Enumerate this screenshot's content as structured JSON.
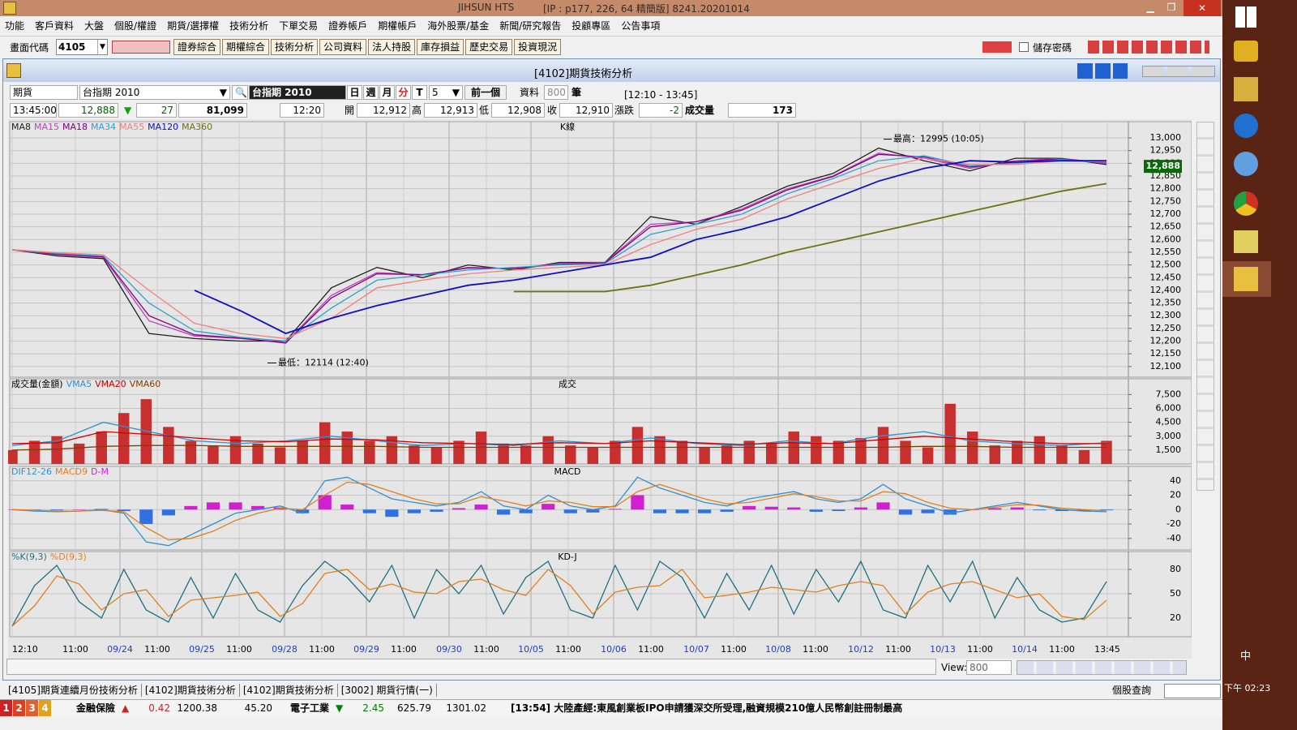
{
  "window": {
    "title": "JIHSUN HTS",
    "connection": "[IP : p177, 226, 64 精簡版] 8241.20201014"
  },
  "menu": [
    "功能",
    "客戶資料",
    "大盤",
    "個股/權證",
    "期貨/選擇權",
    "技術分析",
    "下單交易",
    "證券帳戶",
    "期權帳戶",
    "海外股票/基金",
    "新聞/研究報告",
    "投顧專區",
    "公告事項"
  ],
  "toolbar": {
    "code_label": "畫面代碼",
    "code": "4105",
    "buttons": [
      "證券綜合",
      "期權綜合",
      "技術分析",
      "公司資料",
      "法人持股",
      "庫存損益",
      "歷史交易",
      "投資現況"
    ],
    "save_password": "儲存密碼"
  },
  "panel": {
    "title": "[4102]期貨技術分析",
    "market": "期貨",
    "contract": "台指期 2010",
    "contract_label": "台指期 2010",
    "periods": [
      "日",
      "週",
      "月",
      "分",
      "T"
    ],
    "interval": "5",
    "prev": "前一個",
    "data_label": "資料",
    "data_count": "800",
    "unit": "筆",
    "range": "[12:10 - 13:45]"
  },
  "quote": {
    "time": "13:45:00",
    "last": "12,888",
    "arrow": "▼",
    "change": "27",
    "volume_total": "81,099",
    "bar_time": "12:20",
    "open_label": "開",
    "open": "12,912",
    "high_label": "高",
    "high": "12,913",
    "low_label": "低",
    "low": "12,908",
    "close_label": "收",
    "close": "12,910",
    "diff_label": "漲跌",
    "diff": "-2",
    "vol_label": "成交量",
    "vol": "173"
  },
  "chart_data": [
    {
      "type": "line",
      "title": "K線",
      "grid": true,
      "ylim": [
        12058,
        13064
      ],
      "yticks": [
        {
          "value": 12100,
          "label": "12,100"
        },
        {
          "value": 12150,
          "label": "12,150"
        },
        {
          "value": 12200,
          "label": "12,200"
        },
        {
          "value": 12250,
          "label": "12,250"
        },
        {
          "value": 12300,
          "label": "12,300"
        },
        {
          "value": 12350,
          "label": "12,350"
        },
        {
          "value": 12400,
          "label": "12,400"
        },
        {
          "value": 12450,
          "label": "12,450"
        },
        {
          "value": 12500,
          "label": "12,500"
        },
        {
          "value": 12550,
          "label": "12,550"
        },
        {
          "value": 12600,
          "label": "12,600"
        },
        {
          "value": 12650,
          "label": "12,650"
        },
        {
          "value": 12700,
          "label": "12,700"
        },
        {
          "value": 12750,
          "label": "12,750"
        },
        {
          "value": 12800,
          "label": "12,800"
        },
        {
          "value": 12850,
          "label": "12,850"
        },
        {
          "value": 12900,
          "label": "12,900"
        },
        {
          "value": 12950,
          "label": "12,950"
        },
        {
          "value": 13000,
          "label": "13,000"
        }
      ],
      "series": [
        {
          "name": "MA8",
          "color": "#202020",
          "values": [
            12560,
            12535,
            12525,
            12230,
            12210,
            12200,
            12200,
            12410,
            12490,
            12450,
            12500,
            12480,
            12510,
            12510,
            12690,
            12660,
            12730,
            12810,
            12860,
            12960,
            12910,
            12870,
            12920,
            12920,
            12895
          ]
        },
        {
          "name": "MA15",
          "color": "#c040c0",
          "values": [
            12560,
            12540,
            12530,
            12280,
            12220,
            12210,
            12195,
            12380,
            12470,
            12460,
            12490,
            12485,
            12505,
            12510,
            12660,
            12670,
            12720,
            12800,
            12850,
            12940,
            12920,
            12880,
            12910,
            12920,
            12900
          ]
        },
        {
          "name": "MA18",
          "color": "#800080",
          "values": [
            12560,
            12542,
            12532,
            12300,
            12225,
            12212,
            12192,
            12370,
            12465,
            12462,
            12488,
            12486,
            12502,
            12508,
            12650,
            12670,
            12715,
            12795,
            12848,
            12935,
            12925,
            12885,
            12905,
            12918,
            12902
          ]
        },
        {
          "name": "MA34",
          "color": "#30a0d0",
          "values": [
            12560,
            12545,
            12535,
            12350,
            12240,
            12215,
            12200,
            12330,
            12440,
            12460,
            12480,
            12490,
            12500,
            12505,
            12620,
            12660,
            12700,
            12780,
            12840,
            12910,
            12930,
            12890,
            12900,
            12915,
            12905
          ]
        },
        {
          "name": "MA55",
          "color": "#f08080",
          "values": [
            12560,
            12548,
            12540,
            12400,
            12270,
            12230,
            12210,
            12290,
            12410,
            12440,
            12465,
            12480,
            12490,
            12500,
            12580,
            12640,
            12680,
            12760,
            12820,
            12880,
            12920,
            12895,
            12895,
            12910,
            12905
          ]
        },
        {
          "name": "MA120",
          "color": "#1010c0",
          "values": [
            null,
            null,
            null,
            null,
            12400,
            12320,
            12230,
            12290,
            12340,
            12380,
            12420,
            12440,
            12470,
            12500,
            12530,
            12600,
            12640,
            12690,
            12760,
            12830,
            12880,
            12910,
            12905,
            12910,
            12910
          ]
        },
        {
          "name": "MA360",
          "color": "#707010",
          "values": [
            null,
            null,
            null,
            null,
            null,
            null,
            null,
            null,
            null,
            null,
            null,
            12395,
            12395,
            12395,
            12420,
            12460,
            12500,
            12550,
            12590,
            12630,
            12670,
            12710,
            12750,
            12790,
            12820
          ]
        }
      ],
      "last_price": {
        "value": 12888,
        "label": "12,888"
      },
      "high": {
        "label": "最高：12995 (10:05)",
        "value": 12995
      },
      "low": {
        "label": "最低：12114 (12:40)",
        "value": 12114
      }
    },
    {
      "type": "bar",
      "title": "成交",
      "legend_title": "成交量(金額)",
      "color": "#c83030",
      "grid": true,
      "ylim": [
        0,
        9200
      ],
      "yticks": [
        {
          "value": 1500,
          "label": "1,500"
        },
        {
          "value": 3000,
          "label": "3,000"
        },
        {
          "value": 4500,
          "label": "4,500"
        },
        {
          "value": 6000,
          "label": "6,000"
        },
        {
          "value": 7500,
          "label": "7,500"
        }
      ],
      "values": [
        1500,
        2500,
        3000,
        2200,
        3500,
        5500,
        7000,
        4000,
        2500,
        2000,
        3000,
        2200,
        1800,
        2500,
        4500,
        3500,
        2500,
        3000,
        2000,
        1800,
        2500,
        3500,
        2200,
        2000,
        3000,
        2000,
        1800,
        2500,
        4000,
        3000,
        2500,
        1800,
        2000,
        2500,
        2200,
        3500,
        3000,
        2500,
        2800,
        4000,
        2500,
        1800,
        6500,
        3500,
        2000,
        2500,
        3000,
        2000,
        1500,
        2500
      ],
      "series": [
        {
          "name": "VMA5",
          "color": "#3090d0",
          "values": [
            2000,
            2500,
            4500,
            3500,
            2500,
            2200,
            2500,
            3000,
            2500,
            2000,
            2200,
            2000,
            2500,
            2200,
            2800,
            2200,
            2000,
            2500,
            2200,
            3000,
            3500,
            2500,
            2200,
            2000,
            2300
          ]
        },
        {
          "name": "VMA20",
          "color": "#d00000",
          "values": [
            2200,
            2300,
            3500,
            3200,
            2800,
            2500,
            2400,
            2700,
            2600,
            2300,
            2200,
            2100,
            2300,
            2200,
            2500,
            2300,
            2100,
            2300,
            2200,
            2600,
            3000,
            2700,
            2400,
            2200,
            2200
          ]
        },
        {
          "name": "VMA60",
          "color": "#804000",
          "values": [
            1500,
            1600,
            1900,
            2000,
            2000,
            1900,
            1900,
            1900,
            1900,
            1800,
            1800,
            1800,
            1800,
            1800,
            1800,
            1800,
            1800,
            1800,
            1800,
            1800,
            1900,
            1900,
            1800,
            1800,
            1800
          ]
        }
      ]
    },
    {
      "type": "line",
      "title": "MACD",
      "grid": true,
      "ylim": [
        -56,
        60
      ],
      "yticks": [
        40,
        20,
        0,
        -20,
        -40
      ],
      "series": [
        {
          "name": "DIF12-26",
          "color": "#3090d0",
          "values": [
            0,
            -2,
            -3,
            -2,
            0,
            -5,
            -45,
            -50,
            -35,
            -20,
            -5,
            0,
            5,
            -5,
            40,
            45,
            30,
            15,
            10,
            5,
            10,
            25,
            5,
            0,
            20,
            5,
            0,
            5,
            45,
            30,
            20,
            10,
            5,
            15,
            20,
            25,
            15,
            10,
            15,
            35,
            15,
            5,
            -5,
            0,
            5,
            10,
            5,
            0,
            -2,
            -3
          ]
        },
        {
          "name": "MACD9",
          "color": "#e08020",
          "values": [
            0,
            -1,
            -2,
            -2,
            -1,
            -3,
            -25,
            -42,
            -40,
            -30,
            -15,
            -5,
            2,
            0,
            20,
            38,
            35,
            25,
            15,
            8,
            8,
            18,
            12,
            5,
            12,
            10,
            4,
            4,
            25,
            35,
            25,
            15,
            8,
            10,
            16,
            22,
            18,
            12,
            12,
            25,
            22,
            10,
            2,
            0,
            3,
            7,
            6,
            2,
            0,
            -2
          ]
        }
      ],
      "histogram": {
        "name": "D-M",
        "color": "#d020d0",
        "negative_color": "#3070e0",
        "values": [
          0,
          -1,
          -1,
          0,
          1,
          -2,
          -20,
          -8,
          5,
          10,
          10,
          5,
          3,
          -5,
          20,
          7,
          -5,
          -10,
          -5,
          -3,
          2,
          7,
          -7,
          -5,
          8,
          -5,
          -4,
          1,
          20,
          -5,
          -5,
          -5,
          -3,
          5,
          4,
          3,
          -3,
          -2,
          3,
          10,
          -7,
          -5,
          -7,
          0,
          2,
          3,
          -1,
          -2,
          -2,
          -1
        ]
      }
    },
    {
      "type": "line",
      "title": "KD-J",
      "grid": true,
      "ylim": [
        -3,
        102
      ],
      "yticks": [
        80,
        50,
        20
      ],
      "series": [
        {
          "name": "%K(9,3)",
          "color": "#207080",
          "values": [
            10,
            60,
            85,
            40,
            20,
            80,
            30,
            15,
            70,
            20,
            75,
            30,
            15,
            60,
            90,
            70,
            40,
            85,
            20,
            80,
            50,
            85,
            25,
            70,
            90,
            30,
            20,
            85,
            30,
            90,
            70,
            20,
            75,
            30,
            85,
            25,
            80,
            40,
            90,
            30,
            20,
            85,
            40,
            90,
            20,
            70,
            30,
            15,
            20,
            65
          ]
        },
        {
          "name": "%D(9,3)",
          "color": "#e08020",
          "values": [
            10,
            35,
            72,
            62,
            30,
            50,
            55,
            22,
            42,
            45,
            48,
            52,
            22,
            38,
            75,
            80,
            55,
            62,
            52,
            50,
            65,
            68,
            55,
            48,
            80,
            60,
            25,
            52,
            58,
            60,
            80,
            45,
            48,
            52,
            58,
            55,
            52,
            60,
            65,
            60,
            25,
            52,
            62,
            65,
            55,
            45,
            50,
            22,
            18,
            42
          ]
        }
      ]
    }
  ],
  "time_axis": [
    "12:10",
    "11:00",
    "09/24",
    "11:00",
    "09/25",
    "11:00",
    "09/28",
    "11:00",
    "09/29",
    "11:00",
    "09/30",
    "11:00",
    "10/05",
    "11:00",
    "10/06",
    "11:00",
    "10/07",
    "11:00",
    "10/08",
    "11:00",
    "10/12",
    "11:00",
    "10/13",
    "11:00",
    "10/14",
    "11:00",
    "13:45"
  ],
  "footer": {
    "view_label": "View:",
    "view": "800",
    "tabs": [
      "[4105]期貨連續月份技術分析",
      "[4102]期貨技術分析",
      "[4102]期貨技術分析",
      "[3002] 期貨行情(一)"
    ],
    "search": "個股查詢"
  },
  "ticker": {
    "pages": [
      "1",
      "2",
      "3",
      "4"
    ],
    "items": [
      {
        "name": "金融保險",
        "arrow": "▲",
        "change": "0.42",
        "index": "1200.38",
        "amount": "45.20"
      },
      {
        "name": "電子工業",
        "arrow": "▼",
        "change": "2.45",
        "index": "625.79",
        "amount": "1301.02"
      }
    ],
    "news": "[13:54] 大陸產經:東風創業板IPO申請獲深交所受理,融資規模210億人民幣創註冊制最高"
  },
  "taskbar": {
    "ime": "中",
    "clock": "下午 02:23"
  }
}
